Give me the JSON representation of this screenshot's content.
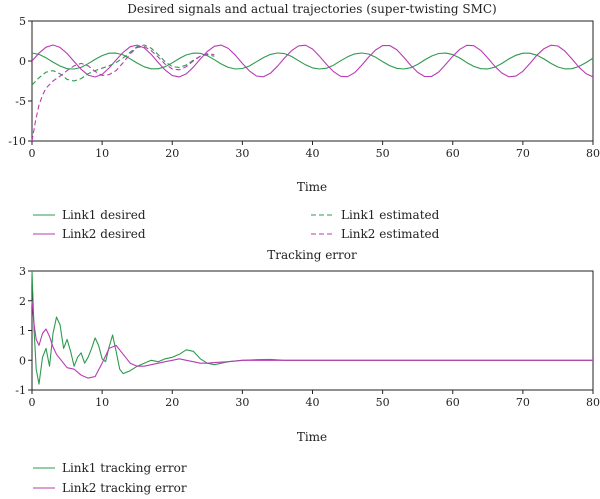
{
  "colors": {
    "link1": "#2e9a4e",
    "link2": "#b83cb3",
    "axis": "#222222"
  },
  "chart_data": [
    {
      "type": "line",
      "title": "Desired signals and actual trajectories (super-twisting SMC)",
      "xlabel": "Time",
      "ylabel": "",
      "xlim": [
        0,
        80
      ],
      "ylim": [
        -10,
        5
      ],
      "x_ticks": [
        0,
        10,
        20,
        30,
        40,
        50,
        60,
        70,
        80
      ],
      "y_ticks": [
        -10,
        -5,
        0,
        5
      ],
      "grid": false,
      "legend_position": "bottom",
      "series": [
        {
          "name": "Link1 desired",
          "color": "#2e9a4e",
          "dash": "solid",
          "x": [
            0,
            1,
            2,
            3,
            4,
            5,
            6,
            7,
            8,
            9,
            10,
            11,
            12,
            13,
            14,
            15,
            16,
            17,
            18,
            19,
            20,
            21,
            22,
            23,
            24,
            25,
            26,
            27,
            28,
            29,
            30,
            31,
            32,
            33,
            34,
            35,
            36,
            37,
            38,
            39,
            40,
            41,
            42,
            43,
            44,
            45,
            46,
            47,
            48,
            49,
            50,
            51,
            52,
            53,
            54,
            55,
            56,
            57,
            58,
            59,
            60,
            61,
            62,
            63,
            64,
            65,
            66,
            67,
            68,
            69,
            70,
            71,
            72,
            73,
            74,
            75,
            76,
            77,
            78,
            79,
            80
          ],
          "y": [
            1.0,
            0.83,
            0.4,
            -0.14,
            -0.63,
            -0.96,
            -1.0,
            -0.8,
            -0.34,
            0.2,
            0.68,
            0.97,
            0.99,
            0.76,
            0.28,
            -0.26,
            -0.72,
            -0.98,
            -0.98,
            -0.71,
            -0.22,
            0.31,
            0.76,
            0.99,
            0.96,
            0.66,
            0.16,
            -0.37,
            -0.8,
            -1.0,
            -0.94,
            -0.62,
            -0.1,
            0.42,
            0.83,
            1.0,
            0.92,
            0.57,
            0.04,
            -0.47,
            -0.86,
            -1.0,
            -0.9,
            -0.52,
            0.02,
            0.53,
            0.89,
            1.0,
            0.87,
            0.47,
            -0.08,
            -0.58,
            -0.91,
            -1.0,
            -0.84,
            -0.42,
            0.14,
            0.62,
            0.94,
            0.99,
            0.8,
            0.37,
            -0.2,
            -0.67,
            -0.96,
            -0.99,
            -0.77,
            -0.31,
            0.25,
            0.71,
            0.97,
            0.98,
            0.72,
            0.26,
            -0.3,
            -0.75,
            -0.99,
            -0.96,
            -0.67,
            -0.2,
            0.36
          ]
        },
        {
          "name": "Link2 desired",
          "color": "#b83cb3",
          "dash": "solid",
          "x": [
            0,
            1,
            2,
            3,
            4,
            5,
            6,
            7,
            8,
            9,
            10,
            11,
            12,
            13,
            14,
            15,
            16,
            17,
            18,
            19,
            20,
            21,
            22,
            23,
            24,
            25,
            26,
            27,
            28,
            29,
            30,
            31,
            32,
            33,
            34,
            35,
            36,
            37,
            38,
            39,
            40,
            41,
            42,
            43,
            44,
            45,
            46,
            47,
            48,
            49,
            50,
            51,
            52,
            53,
            54,
            55,
            56,
            57,
            58,
            59,
            60,
            61,
            62,
            63,
            64,
            65,
            66,
            67,
            68,
            69,
            70,
            71,
            72,
            73,
            74,
            75,
            76,
            77,
            78,
            79,
            80
          ],
          "y": [
            0.0,
            0.99,
            1.73,
            2.0,
            1.7,
            0.94,
            -0.06,
            -1.04,
            -1.76,
            -2.0,
            -1.67,
            -0.88,
            0.12,
            1.09,
            1.79,
            1.99,
            1.64,
            0.83,
            -0.19,
            -1.14,
            -1.82,
            -1.99,
            -1.61,
            -0.77,
            0.25,
            1.19,
            1.84,
            1.99,
            1.57,
            0.72,
            -0.31,
            -1.24,
            -1.87,
            -1.98,
            -1.54,
            -0.66,
            0.37,
            1.29,
            1.89,
            1.97,
            1.5,
            0.6,
            -0.43,
            -1.33,
            -1.91,
            -1.96,
            -1.46,
            -0.55,
            0.49,
            1.38,
            1.93,
            1.94,
            1.42,
            0.49,
            -0.55,
            -1.42,
            -1.94,
            -1.93,
            -1.38,
            -0.43,
            0.6,
            1.46,
            1.96,
            1.91,
            1.33,
            0.37,
            -0.66,
            -1.5,
            -1.97,
            -1.89,
            -1.29,
            -0.31,
            0.72,
            1.54,
            1.98,
            1.87,
            1.24,
            0.25,
            -0.77,
            -1.57,
            -1.99
          ]
        },
        {
          "name": "Link1 estimated",
          "color": "#2e9a4e",
          "dash": "dashed",
          "x": [
            0,
            1,
            2,
            3,
            4,
            5,
            6,
            7,
            8,
            9,
            10,
            11,
            12,
            13,
            14,
            15,
            16,
            17,
            18,
            19,
            20,
            21,
            22,
            23,
            24,
            25,
            26
          ],
          "y": [
            -3.0,
            -2.1,
            -1.4,
            -1.2,
            -1.6,
            -2.3,
            -2.5,
            -2.2,
            -1.6,
            -1.2,
            -0.9,
            -0.6,
            -0.2,
            0.4,
            1.1,
            1.8,
            2.0,
            1.6,
            0.8,
            -0.1,
            -0.7,
            -0.8,
            -0.5,
            0.1,
            0.6,
            0.8,
            0.6
          ]
        },
        {
          "name": "Link2 estimated",
          "color": "#b83cb3",
          "dash": "dashed",
          "x": [
            0,
            0.5,
            1,
            1.5,
            2,
            3,
            4,
            5,
            6,
            7,
            8,
            9,
            10,
            11,
            12,
            13,
            14,
            15,
            16,
            17,
            18,
            19,
            20,
            21,
            22,
            23,
            24,
            25,
            26
          ],
          "y": [
            -10.0,
            -7.5,
            -5.5,
            -4.3,
            -3.4,
            -2.5,
            -1.9,
            -1.2,
            -0.6,
            -0.3,
            -0.6,
            -1.3,
            -1.8,
            -1.7,
            -1.2,
            -0.2,
            0.9,
            1.7,
            1.8,
            1.3,
            0.5,
            -0.4,
            -1.0,
            -1.1,
            -0.7,
            0.0,
            0.6,
            0.9,
            0.8
          ]
        }
      ]
    },
    {
      "type": "line",
      "title": "Tracking error",
      "xlabel": "Time",
      "ylabel": "",
      "xlim": [
        0,
        80
      ],
      "ylim": [
        -1,
        3
      ],
      "x_ticks": [
        0,
        10,
        20,
        30,
        40,
        50,
        60,
        70,
        80
      ],
      "y_ticks": [
        -1,
        0,
        1,
        2,
        3
      ],
      "grid": false,
      "legend_position": "bottom",
      "series": [
        {
          "name": "Link1 tracking error",
          "color": "#2e9a4e",
          "dash": "solid",
          "x": [
            0,
            0.3,
            0.6,
            1,
            1.5,
            2,
            2.5,
            3,
            3.5,
            4,
            4.5,
            5,
            5.5,
            6,
            6.5,
            7,
            7.5,
            8,
            8.5,
            9,
            9.5,
            10,
            10.5,
            11,
            11.5,
            12,
            12.5,
            13,
            14,
            15,
            16,
            17,
            18,
            19,
            20,
            21,
            22,
            23,
            24,
            25,
            26,
            27,
            28,
            30,
            32,
            34,
            36,
            38,
            40,
            50,
            60,
            70,
            80
          ],
          "y": [
            3.0,
            1.0,
            -0.3,
            -0.8,
            0.1,
            0.4,
            -0.2,
            0.9,
            1.45,
            1.2,
            0.4,
            0.7,
            0.3,
            -0.2,
            0.1,
            0.25,
            -0.1,
            0.1,
            0.4,
            0.75,
            0.5,
            0.05,
            -0.05,
            0.45,
            0.85,
            0.3,
            -0.3,
            -0.45,
            -0.35,
            -0.2,
            -0.1,
            0.0,
            -0.05,
            0.05,
            0.1,
            0.2,
            0.35,
            0.3,
            0.05,
            -0.1,
            -0.15,
            -0.1,
            -0.05,
            0.0,
            0.02,
            0.03,
            0.0,
            0.0,
            0.0,
            0.0,
            0.0,
            0.0,
            0.0
          ]
        },
        {
          "name": "Link2 tracking error",
          "color": "#b83cb3",
          "dash": "solid",
          "x": [
            0,
            0.3,
            0.6,
            1,
            1.5,
            2,
            2.5,
            3,
            3.5,
            4,
            5,
            6,
            7,
            8,
            9,
            10,
            11,
            12,
            13,
            14,
            15,
            16,
            17,
            18,
            19,
            20,
            21,
            22,
            23,
            24,
            25,
            26,
            28,
            30,
            32,
            34,
            36,
            40,
            50,
            60,
            70,
            80
          ],
          "y": [
            2.0,
            1.2,
            0.7,
            0.5,
            0.9,
            1.05,
            0.8,
            0.45,
            0.2,
            0.05,
            -0.25,
            -0.3,
            -0.5,
            -0.6,
            -0.55,
            -0.1,
            0.4,
            0.5,
            0.2,
            -0.1,
            -0.2,
            -0.2,
            -0.15,
            -0.1,
            -0.05,
            0.0,
            0.05,
            0.0,
            -0.05,
            -0.1,
            -0.1,
            -0.08,
            -0.05,
            0.0,
            0.0,
            0.0,
            0.0,
            0.0,
            0.0,
            0.0,
            0.0,
            0.0
          ]
        }
      ]
    }
  ]
}
